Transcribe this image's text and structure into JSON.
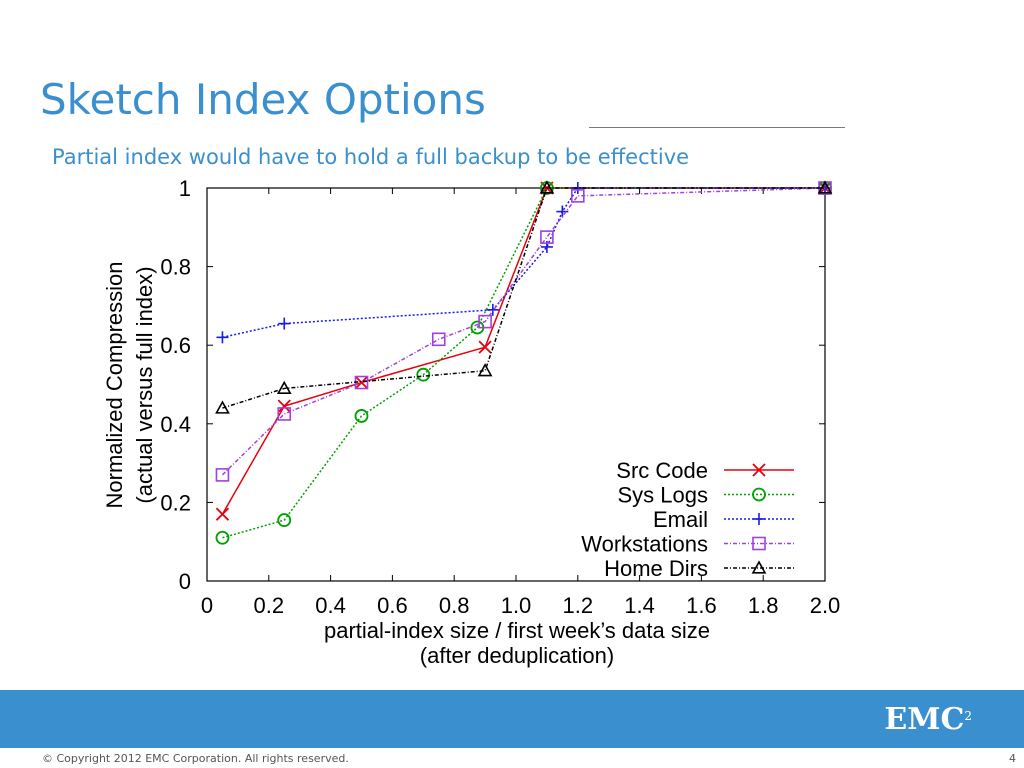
{
  "slide": {
    "title": "Sketch Index Options",
    "subtitle": "Partial index would have to hold a full backup to be effective",
    "copyright": "© Copyright 2012 EMC Corporation. All rights reserved.",
    "page_number": "4",
    "logo_text": "EMC",
    "logo_superscript": "2"
  },
  "colors": {
    "title": "#3a8fce",
    "footer_band": "#3a8fce"
  },
  "chart_data": {
    "type": "line",
    "xlabel": "partial-index size / first week’s data size",
    "xlabel2": "(after deduplication)",
    "ylabel": "Normalized Compression",
    "ylabel2": "(actual versus full index)",
    "xlim": [
      0,
      2.0
    ],
    "ylim": [
      0,
      1
    ],
    "x_ticks": [
      0,
      0.2,
      0.4,
      0.6,
      0.8,
      1.0,
      1.2,
      1.4,
      1.6,
      1.8,
      2.0
    ],
    "x_tick_labels": [
      "0",
      "0.2",
      "0.4",
      "0.6",
      "0.8",
      "1.0",
      "1.2",
      "1.4",
      "1.6",
      "1.8",
      "2.0"
    ],
    "y_ticks": [
      0,
      0.2,
      0.4,
      0.6,
      0.8,
      1
    ],
    "y_tick_labels": [
      "0",
      "0.2",
      "0.4",
      "0.6",
      "0.8",
      "1"
    ],
    "grid": false,
    "legend_position": "bottom-right",
    "series": [
      {
        "name": "Src Code",
        "color": "#e8000b",
        "marker": "x",
        "dash": "solid",
        "points": [
          [
            0.05,
            0.17
          ],
          [
            0.25,
            0.445
          ],
          [
            0.5,
            0.505
          ],
          [
            0.9,
            0.595
          ],
          [
            1.1,
            1.0
          ],
          [
            2.0,
            1.0
          ]
        ]
      },
      {
        "name": "Sys Logs",
        "color": "#00a000",
        "marker": "circle",
        "dash": "dotted",
        "points": [
          [
            0.05,
            0.11
          ],
          [
            0.25,
            0.155
          ],
          [
            0.5,
            0.42
          ],
          [
            0.7,
            0.525
          ],
          [
            0.875,
            0.645
          ],
          [
            1.1,
            1.0
          ],
          [
            2.0,
            1.0
          ]
        ]
      },
      {
        "name": "Email",
        "color": "#1a1ae8",
        "marker": "plus",
        "dash": "dotted",
        "points": [
          [
            0.05,
            0.62
          ],
          [
            0.25,
            0.655
          ],
          [
            0.925,
            0.69
          ],
          [
            1.1,
            0.85
          ],
          [
            1.15,
            0.94
          ],
          [
            1.2,
            1.0
          ],
          [
            2.0,
            1.0
          ]
        ]
      },
      {
        "name": "Workstations",
        "color": "#a040e0",
        "marker": "square",
        "dash": "dashdot",
        "points": [
          [
            0.05,
            0.27
          ],
          [
            0.25,
            0.425
          ],
          [
            0.5,
            0.505
          ],
          [
            0.75,
            0.615
          ],
          [
            0.9,
            0.66
          ],
          [
            1.1,
            0.875
          ],
          [
            1.2,
            0.98
          ],
          [
            2.0,
            1.0
          ]
        ]
      },
      {
        "name": "Home Dirs",
        "color": "#000000",
        "marker": "triangle",
        "dash": "dashdot",
        "points": [
          [
            0.05,
            0.44
          ],
          [
            0.25,
            0.49
          ],
          [
            0.9,
            0.535
          ],
          [
            1.1,
            1.0
          ],
          [
            2.0,
            1.0
          ]
        ]
      }
    ]
  }
}
